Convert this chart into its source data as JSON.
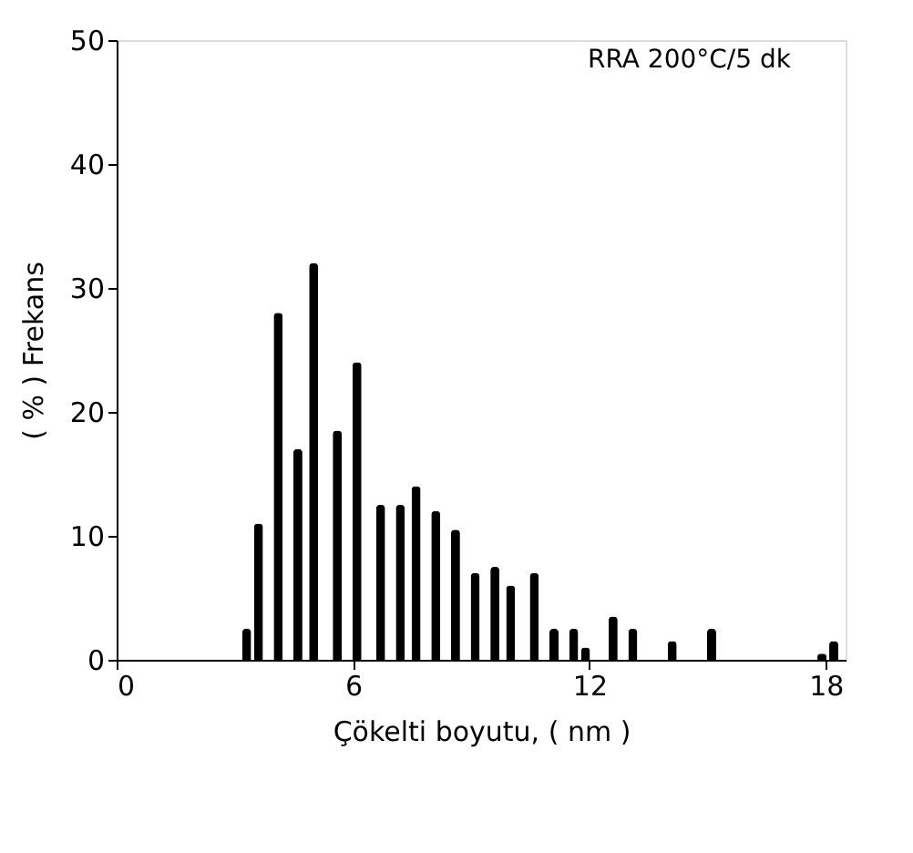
{
  "chart_data": {
    "type": "bar",
    "xlabel": "Çökelti boyutu, ( nm )",
    "ylabel": "( % ) Frekans",
    "annotations": [
      "RRA 200°C/5 dk"
    ],
    "x": [
      3.3,
      3.6,
      4.1,
      4.6,
      5.0,
      5.6,
      6.1,
      6.7,
      7.2,
      7.6,
      8.1,
      8.6,
      9.1,
      9.6,
      10.0,
      10.6,
      11.1,
      11.6,
      11.9,
      12.6,
      13.1,
      14.1,
      15.1,
      17.9,
      18.2
    ],
    "values": [
      2.5,
      11,
      28,
      17,
      32,
      18.5,
      24,
      12.5,
      12.5,
      14,
      12,
      10.5,
      7,
      7.5,
      6,
      7,
      2.5,
      2.5,
      1,
      3.5,
      2.5,
      1.5,
      2.5,
      0.5,
      1.5
    ],
    "color": "#000000",
    "xlim": [
      0,
      18.5
    ],
    "xticks": [
      0,
      6,
      12,
      18
    ],
    "ylim": [
      0,
      50
    ],
    "yticks": [
      0,
      10,
      20,
      30,
      40,
      50
    ],
    "grid": false
  }
}
